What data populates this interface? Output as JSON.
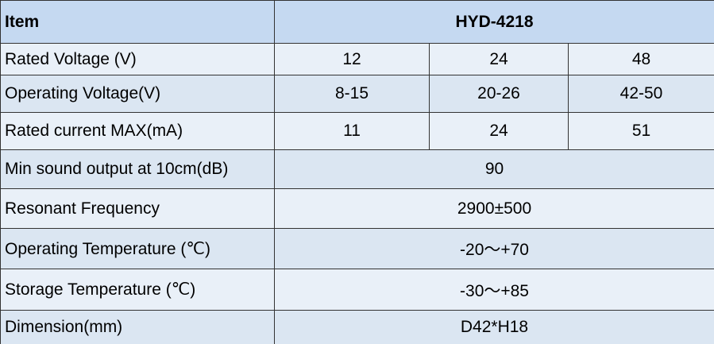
{
  "table": {
    "header": [
      "Item",
      "HYD-4218"
    ],
    "rows": [
      [
        "Rated Voltage (V)",
        "12",
        "24",
        "48"
      ],
      [
        "Operating Voltage(V)",
        "8-15",
        "20-26",
        "42-50"
      ],
      [
        "Rated current MAX(mA)",
        "11",
        "24",
        "51"
      ],
      [
        "Min sound output at 10cm(dB)",
        "90"
      ],
      [
        "Resonant Frequency",
        "2900±500"
      ],
      [
        "Operating Temperature (℃)",
        "-20〜+70"
      ],
      [
        "Storage Temperature (℃)",
        "-30〜+85"
      ],
      [
        "Dimension(mm)",
        "D42*H18"
      ]
    ]
  }
}
